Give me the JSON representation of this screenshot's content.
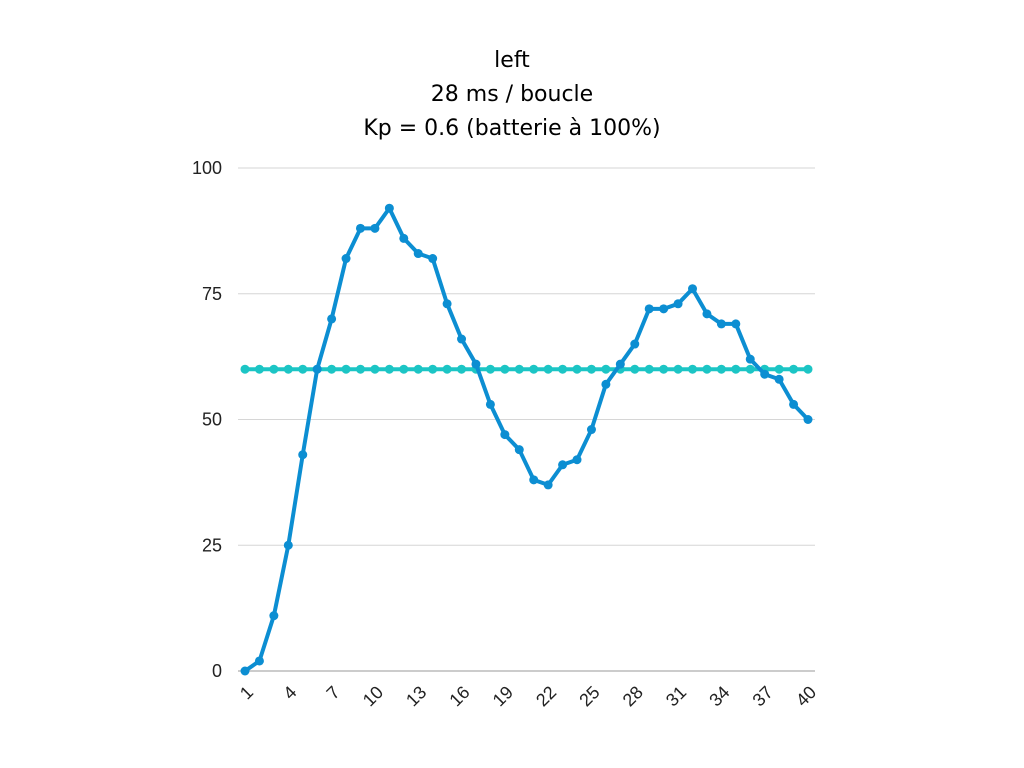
{
  "chart_data": {
    "type": "line",
    "title_lines": [
      "left",
      "28 ms / boucle",
      "Kp = 0.6 (batterie à 100%)"
    ],
    "xlabel": "",
    "ylabel": "",
    "x": [
      1,
      2,
      3,
      4,
      5,
      6,
      7,
      8,
      9,
      10,
      11,
      12,
      13,
      14,
      15,
      16,
      17,
      18,
      19,
      20,
      21,
      22,
      23,
      24,
      25,
      26,
      27,
      28,
      29,
      30,
      31,
      32,
      33,
      34,
      35,
      36,
      37,
      38,
      39,
      40
    ],
    "x_tick_labels": [
      "1",
      "4",
      "7",
      "10",
      "13",
      "16",
      "19",
      "22",
      "25",
      "28",
      "31",
      "34",
      "37",
      "40"
    ],
    "x_tick_values": [
      1,
      4,
      7,
      10,
      13,
      16,
      19,
      22,
      25,
      28,
      31,
      34,
      37,
      40
    ],
    "ylim": [
      0,
      100
    ],
    "y_ticks": [
      0,
      25,
      50,
      75,
      100
    ],
    "grid": "horizontal",
    "legend": "none",
    "series": [
      {
        "color": "#0C8ED2",
        "values": [
          0,
          2,
          11,
          25,
          43,
          60,
          70,
          82,
          88,
          88,
          92,
          86,
          83,
          82,
          73,
          66,
          61,
          53,
          47,
          44,
          38,
          37,
          41,
          42,
          48,
          57,
          61,
          65,
          72,
          72,
          73,
          76,
          71,
          69,
          69,
          62,
          59,
          58,
          53,
          50
        ]
      },
      {
        "color": "#1CC5C5",
        "values": [
          60,
          60,
          60,
          60,
          60,
          60,
          60,
          60,
          60,
          60,
          60,
          60,
          60,
          60,
          60,
          60,
          60,
          60,
          60,
          60,
          60,
          60,
          60,
          60,
          60,
          60,
          60,
          60,
          60,
          60,
          60,
          60,
          60,
          60,
          60,
          60,
          60,
          60,
          60,
          60
        ]
      }
    ]
  }
}
